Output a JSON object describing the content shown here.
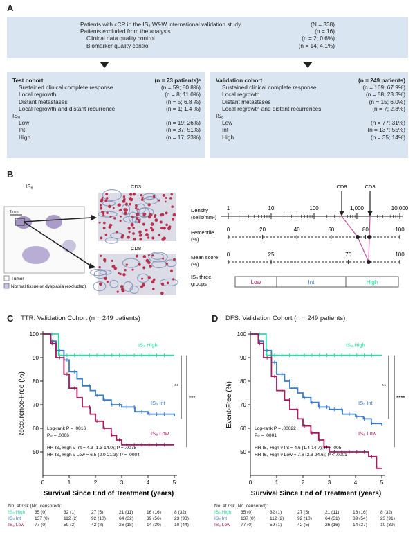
{
  "panel_a": {
    "letter": "A",
    "top_rows": [
      {
        "label": "Patients with cCR in the IS₈ W&W international validation study",
        "value": "(N = 338)",
        "indent": false
      },
      {
        "label": "Patients excluded from the analysis",
        "value": "(n = 16)",
        "indent": false
      },
      {
        "label": "Clinical data quality control",
        "value": "(n = 2; 0.6%)",
        "indent": true
      },
      {
        "label": "Biomarker quality control",
        "value": "(n = 14; 4.1%)",
        "indent": true
      }
    ],
    "test_cohort": {
      "title": "Test cohort",
      "title_value": "(n = 73 patients)ᵃ",
      "rows": [
        {
          "label": "Sustained clinical complete response",
          "value": "(n = 59; 80.8%)",
          "indent": true
        },
        {
          "label": "Local regrowth",
          "value": "(n = 8; 11.0%)",
          "indent": true
        },
        {
          "label": "Distant metastases",
          "value": "(n = 5; 6.8 %)",
          "indent": true
        },
        {
          "label": "Local regrowth and distant recurrence",
          "value": "(n = 1; 1.4 %)",
          "indent": true
        },
        {
          "label": "IS₈",
          "value": "",
          "indent": false
        },
        {
          "label": "Low",
          "value": "(n = 19; 26%)",
          "indent": true
        },
        {
          "label": "Int",
          "value": "(n = 37; 51%)",
          "indent": true
        },
        {
          "label": "High",
          "value": "(n = 17; 23%)",
          "indent": true
        }
      ]
    },
    "validation_cohort": {
      "title": "Validation cohort",
      "title_value": "(n = 249 patients)",
      "rows": [
        {
          "label": "Sustained clinical complete response",
          "value": "(n = 169; 67.9%)",
          "indent": true
        },
        {
          "label": "Local regrowth",
          "value": "(n = 58; 23.3%)",
          "indent": true
        },
        {
          "label": "Distant metastases",
          "value": "(n = 15; 6.0%)",
          "indent": true
        },
        {
          "label": "Local regrowth and distant recurrences",
          "value": "(n = 7; 2.8%)",
          "indent": true
        },
        {
          "label": "IS₈",
          "value": "",
          "indent": false
        },
        {
          "label": "Low",
          "value": "(n = 77; 31%)",
          "indent": true
        },
        {
          "label": "Int",
          "value": "(n = 137; 55%)",
          "indent": true
        },
        {
          "label": "High",
          "value": "(n = 35; 14%)",
          "indent": true
        }
      ]
    }
  },
  "panel_b": {
    "letter": "B",
    "slide_label": "IS₈",
    "scale_label": "2 mm",
    "legend_tumor": "Tumor",
    "legend_normal": "Normal tissue or dysplasia (excluded)",
    "cd3_label": "CD3",
    "cd8_label": "CD8",
    "marker_cd8": "CD8",
    "marker_cd3": "CD3",
    "density_label": "Density (cells/mm²)",
    "density_ticks": [
      "1",
      "10",
      "100",
      "1,000",
      "10,000"
    ],
    "percentile_label": "Percentile (%)",
    "percentile_ticks": [
      "0",
      "20",
      "40",
      "60",
      "80",
      "100"
    ],
    "mean_label": "Mean score (%)",
    "mean_ticks": [
      "0",
      "25",
      "70",
      "100"
    ],
    "groups_label": "IS₈ three groups",
    "groups": [
      "Low",
      "Int",
      "High"
    ],
    "colors": {
      "low": "#a3185f",
      "int": "#3a7bc8",
      "high": "#22e0a6",
      "link": "#c24e9e"
    }
  },
  "km_c": {
    "letter": "C",
    "title": "TTR: Validation Cohort (n = 249 patients)",
    "ylabel": "Reccurence-Free (%)",
    "xlabel": "Survival Since End of Treatment (years)",
    "high_label": "IS₈ High",
    "int_label": "IS₈ Int",
    "low_label": "IS₈ Low",
    "sig1": "**",
    "sig2": "***",
    "stats": [
      "Log-rank P = .0016",
      "Pₜᵣ = .0006",
      "",
      "HR IS₈ High v Int = 4.3 (1.3-14.0); P = .0078",
      "HR IS₈ High v Low = 6.5 (2.0-21.3); P = .0004"
    ],
    "risk_header": "No. at risk (No. censored):",
    "risk_rows": [
      {
        "name": "IS₈ High",
        "cells": [
          "35 (0)",
          "32 (1)",
          "27 (5)",
          "21 (11)",
          "16 (16)",
          "8 (32)"
        ]
      },
      {
        "name": "IS₈ Int",
        "cells": [
          "137 (0)",
          "112 (2)",
          "92 (10)",
          "64 (32)",
          "39 (56)",
          "23 (93)"
        ]
      },
      {
        "name": "IS₈ Low",
        "cells": [
          "77 (0)",
          "59 (2)",
          "42 (8)",
          "26 (18)",
          "14 (30)",
          "10 (44)"
        ]
      }
    ]
  },
  "km_d": {
    "letter": "D",
    "title": "DFS: Validation Cohort (n = 249 patients)",
    "ylabel": "Event-Free (%)",
    "xlabel": "Survival Since End of Treatment (years)",
    "high_label": "IS₈ High",
    "int_label": "IS₈ Int",
    "low_label": "IS₈ Low",
    "sig1": "**",
    "sig2": "****",
    "stats": [
      "Log-rank P = .00022",
      "Pₜᵣ = .0001",
      "",
      "HR IS₈ High v Int = 4.6 (1.4-14.7); P = .005",
      "HR IS₈ High v Low = 7.6 (2.3-24.6); P < .0001"
    ],
    "risk_header": "No. at risk (No. censored):",
    "risk_rows": [
      {
        "name": "IS₈ High",
        "cells": [
          "35 (0)",
          "32 (1)",
          "27 (5)",
          "21 (11)",
          "16 (16)",
          "8 (32)"
        ]
      },
      {
        "name": "IS₈ Int",
        "cells": [
          "137 (0)",
          "112 (2)",
          "92 (10)",
          "64 (31)",
          "39 (54)",
          "23 (91)"
        ]
      },
      {
        "name": "IS₈ Low",
        "cells": [
          "77 (0)",
          "59 (1)",
          "42 (5)",
          "26 (16)",
          "14 (27)",
          "10 (39)"
        ]
      }
    ]
  },
  "chart_data": [
    {
      "type": "line",
      "title": "TTR: Validation Cohort (n = 249 patients)",
      "xlabel": "Survival Since End of Treatment (years)",
      "ylabel": "Reccurence-Free (%)",
      "xlim": [
        0,
        5
      ],
      "ylim": [
        40,
        100
      ],
      "xticks": [
        "0",
        "1",
        "2",
        "3",
        "4",
        "5"
      ],
      "yticks": [
        "50",
        "60",
        "70",
        "80",
        "90",
        "100"
      ],
      "series": [
        {
          "name": "IS₈ High",
          "color": "#22e0a6",
          "x": [
            0,
            0.3,
            0.6,
            5
          ],
          "y": [
            100,
            100,
            91,
            91
          ]
        },
        {
          "name": "IS₈ Int",
          "color": "#3a7bc8",
          "x": [
            0,
            0.3,
            0.5,
            0.8,
            1.0,
            1.3,
            1.5,
            1.8,
            2.0,
            2.3,
            2.6,
            3.0,
            3.5,
            4.0,
            4.5,
            5.0
          ],
          "y": [
            100,
            97,
            93,
            89,
            84,
            81,
            78,
            76,
            74,
            72,
            70,
            69,
            67,
            66,
            66,
            65
          ]
        },
        {
          "name": "IS₈ Low",
          "color": "#a3185f",
          "x": [
            0,
            0.3,
            0.5,
            0.8,
            1.0,
            1.3,
            1.5,
            1.8,
            2.0,
            2.3,
            2.6,
            2.8,
            3.0,
            5.0
          ],
          "y": [
            100,
            96,
            90,
            83,
            77,
            73,
            69,
            66,
            63,
            60,
            57,
            55,
            53,
            53
          ]
        }
      ]
    },
    {
      "type": "line",
      "title": "DFS: Validation Cohort (n = 249 patients)",
      "xlabel": "Survival Since End of Treatment (years)",
      "ylabel": "Event-Free (%)",
      "xlim": [
        0,
        5
      ],
      "ylim": [
        40,
        100
      ],
      "xticks": [
        "0",
        "1",
        "2",
        "3",
        "4",
        "5"
      ],
      "yticks": [
        "50",
        "60",
        "70",
        "80",
        "90",
        "100"
      ],
      "series": [
        {
          "name": "IS₈ High",
          "color": "#22e0a6",
          "x": [
            0,
            0.3,
            0.6,
            5
          ],
          "y": [
            100,
            100,
            91,
            91
          ]
        },
        {
          "name": "IS₈ Int",
          "color": "#3a7bc8",
          "x": [
            0,
            0.3,
            0.5,
            0.8,
            1.0,
            1.3,
            1.5,
            1.8,
            2.0,
            2.3,
            2.6,
            3.0,
            3.5,
            4.0,
            4.3,
            4.6,
            5.0
          ],
          "y": [
            100,
            97,
            93,
            88,
            83,
            80,
            77,
            75,
            73,
            71,
            69,
            68,
            66,
            65,
            64,
            62,
            61
          ]
        },
        {
          "name": "IS₈ Low",
          "color": "#a3185f",
          "x": [
            0,
            0.3,
            0.5,
            0.8,
            1.0,
            1.3,
            1.5,
            1.8,
            2.0,
            2.3,
            2.6,
            2.8,
            3.0,
            4.0,
            4.5,
            4.8,
            5.0
          ],
          "y": [
            100,
            96,
            90,
            82,
            76,
            72,
            68,
            64,
            61,
            58,
            55,
            52,
            50,
            50,
            48,
            43,
            43
          ]
        }
      ]
    }
  ]
}
